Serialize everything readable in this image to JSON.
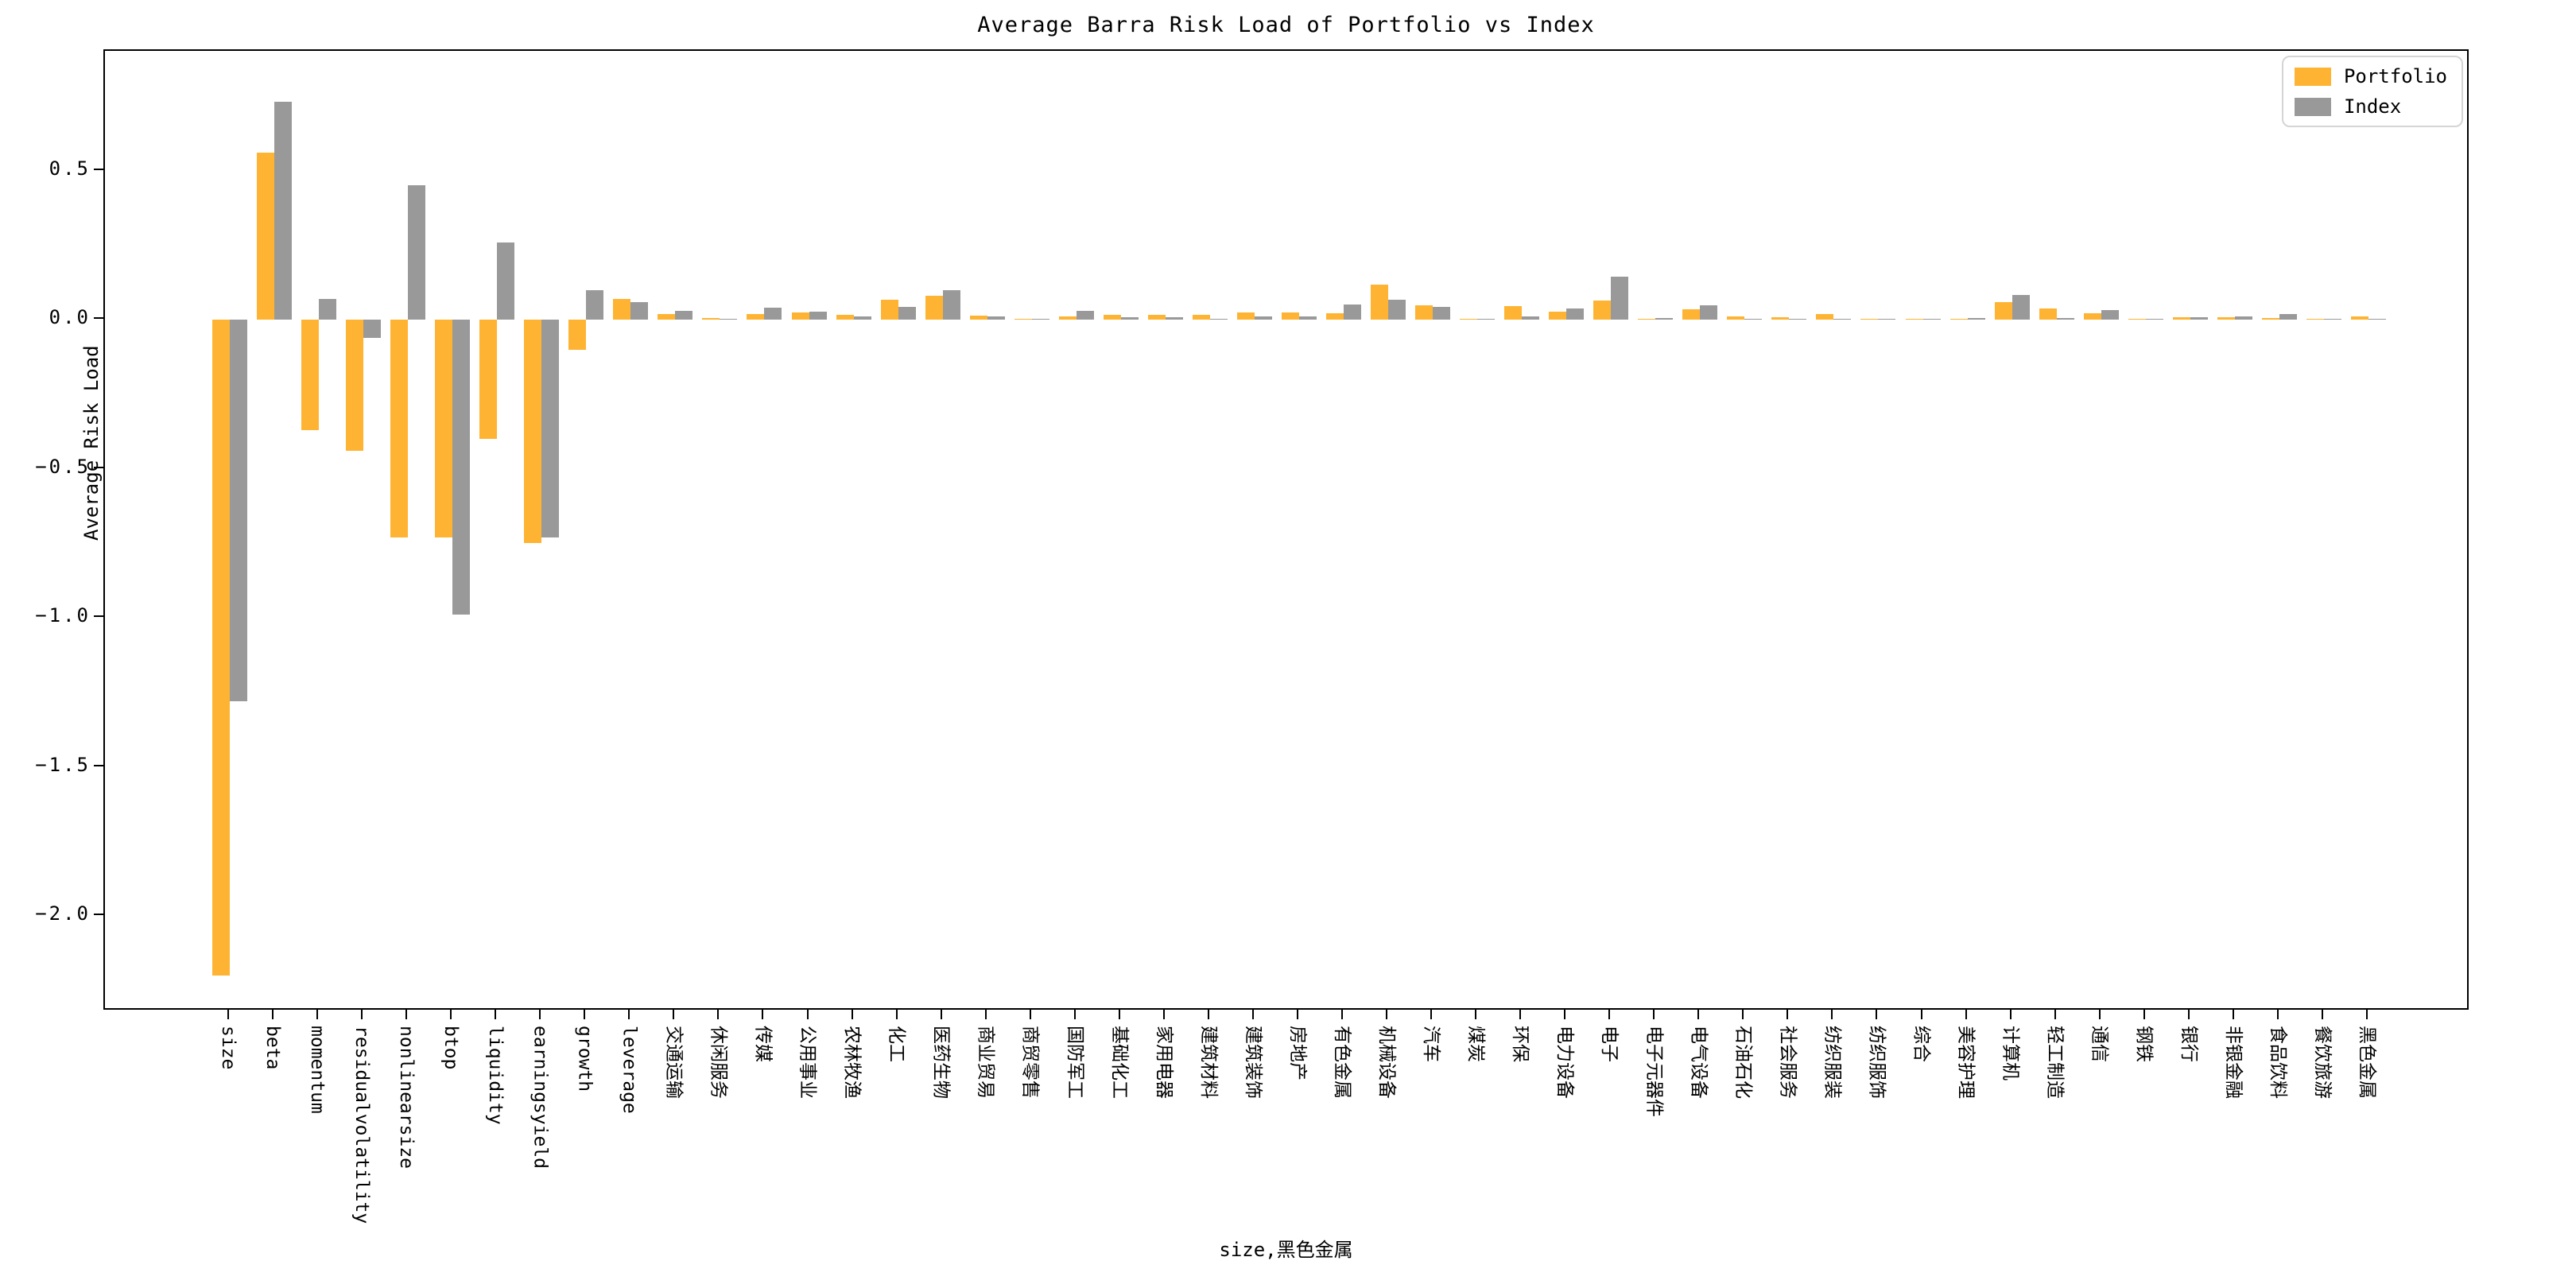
{
  "figure": {
    "title": "Average Barra Risk Load of Portfolio vs Index",
    "xlabel": "size,黑色金属",
    "ylabel": "Average Risk Load",
    "background_color": "#ffffff"
  },
  "legend": {
    "position": "upper right",
    "items": [
      {
        "label": "Portfolio",
        "color": "#FEB432"
      },
      {
        "label": "Index",
        "color": "#999999"
      }
    ]
  },
  "axes": {
    "ytick_labels": [
      "0.5",
      "0.0",
      "−0.5",
      "−1.0",
      "−1.5",
      "−2.0"
    ],
    "ytick_values": [
      0.5,
      0.0,
      -0.5,
      -1.0,
      -1.5,
      -2.0
    ],
    "grid": false
  },
  "chart_data": {
    "type": "bar",
    "title": "Average Barra Risk Load of Portfolio vs Index",
    "xlabel": "size,黑色金属",
    "ylabel": "Average Risk Load",
    "ylim": [
      -2.36,
      0.88
    ],
    "grid": false,
    "legend_position": "upper right",
    "categories": [
      "size",
      "beta",
      "momentum",
      "residualvolatility",
      "nonlinearsize",
      "btop",
      "liquidity",
      "earningsyield",
      "growth",
      "leverage",
      "交通运输",
      "休闲服务",
      "传媒",
      "公用事业",
      "农林牧渔",
      "化工",
      "医药生物",
      "商业贸易",
      "商贸零售",
      "国防军工",
      "基础化工",
      "家用电器",
      "建筑材料",
      "建筑装饰",
      "房地产",
      "有色金属",
      "机械设备",
      "汽车",
      "煤炭",
      "环保",
      "电力设备",
      "电子",
      "电子元器件",
      "电气设备",
      "石油石化",
      "社会服务",
      "纺织服装",
      "纺织服饰",
      "综合",
      "美容护理",
      "计算机",
      "轻工制造",
      "通信",
      "钢铁",
      "银行",
      "非银金融",
      "食品饮料",
      "餐饮旅游",
      "黑色金属"
    ],
    "series": [
      {
        "name": "Portfolio",
        "color": "#FEB432",
        "values": [
          -2.2,
          0.56,
          -0.37,
          -0.44,
          -0.73,
          -0.73,
          -0.4,
          -0.75,
          -0.1,
          0.07,
          0.02,
          0.005,
          0.02,
          0.024,
          0.017,
          0.067,
          0.08,
          0.014,
          0.002,
          0.012,
          0.015,
          0.017,
          0.017,
          0.025,
          0.024,
          0.021,
          0.117,
          0.047,
          0.002,
          0.046,
          0.028,
          0.063,
          0.002,
          0.034,
          0.01,
          0.007,
          0.018,
          0.002,
          0.004,
          0.001,
          0.06,
          0.037,
          0.021,
          0.004,
          0.009,
          0.009,
          0.006,
          0.001,
          0.012
        ]
      },
      {
        "name": "Index",
        "color": "#999999",
        "values": [
          -1.28,
          0.73,
          0.07,
          -0.06,
          0.45,
          -0.99,
          0.26,
          -0.73,
          0.1,
          0.06,
          0.03,
          0.002,
          0.04,
          0.026,
          0.012,
          0.044,
          0.1,
          0.01,
          0.004,
          0.03,
          0.008,
          0.008,
          0.004,
          0.01,
          0.012,
          0.05,
          0.067,
          0.044,
          0.004,
          0.012,
          0.038,
          0.144,
          0.005,
          0.049,
          0.003,
          0.002,
          0.003,
          0.002,
          0.001,
          0.005,
          0.084,
          0.006,
          0.033,
          0.002,
          0.008,
          0.012,
          0.02,
          0.001,
          0.002
        ]
      }
    ]
  }
}
